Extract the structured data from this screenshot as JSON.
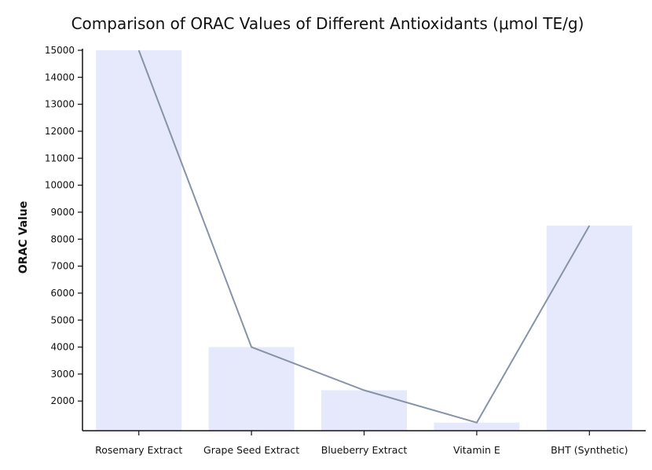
{
  "chart_data": {
    "type": "bar",
    "title": "Comparison of ORAC Values of Different Antioxidants (μmol TE/g)",
    "xlabel": "",
    "ylabel": "ORAC Value",
    "categories": [
      "Rosemary Extract",
      "Grape Seed Extract",
      "Blueberry Extract",
      "Vitamin E",
      "BHT (Synthetic)"
    ],
    "values": [
      15000,
      4000,
      2400,
      1200,
      8500
    ],
    "overlay_line": true,
    "ylim": [
      900,
      15000
    ],
    "yticks": [
      2000,
      3000,
      4000,
      5000,
      6000,
      7000,
      8000,
      9000,
      10000,
      11000,
      12000,
      13000,
      14000,
      15000
    ],
    "grid": false,
    "legend": "none"
  },
  "colors": {
    "bar": "#e6e8fc",
    "line": "#8793a6",
    "axis": "#111111"
  }
}
